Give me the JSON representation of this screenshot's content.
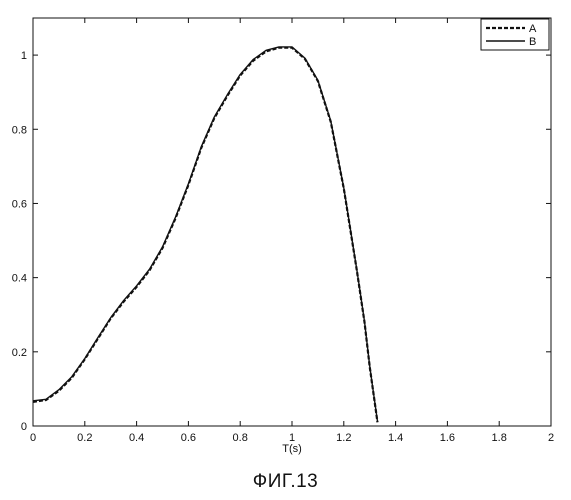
{
  "figure": {
    "caption": "ФИГ.13"
  },
  "chart_data": {
    "type": "line",
    "title": "",
    "xlabel": "T(s)",
    "ylabel": "",
    "xlim": [
      0,
      2
    ],
    "ylim": [
      0,
      1.1
    ],
    "xticks": [
      0,
      0.2,
      0.4,
      0.6,
      0.8,
      1,
      1.2,
      1.4,
      1.6,
      1.8,
      2
    ],
    "yticks": [
      0,
      0.2,
      0.4,
      0.6,
      0.8,
      1
    ],
    "xtick_labels": [
      "0",
      "0.2",
      "0.4",
      "0.6",
      "0.8",
      "1",
      "1.2",
      "1.4",
      "1.6",
      "1.8",
      "2"
    ],
    "ytick_labels": [
      "0",
      "0.2",
      "0.4",
      "0.6",
      "0.8",
      "1"
    ],
    "grid": false,
    "legend": "top-right",
    "series": [
      {
        "name": "A",
        "style": "dashed",
        "color": "#111111",
        "x": [
          0,
          0.05,
          0.1,
          0.15,
          0.2,
          0.25,
          0.3,
          0.35,
          0.4,
          0.45,
          0.5,
          0.55,
          0.6,
          0.65,
          0.7,
          0.75,
          0.8,
          0.85,
          0.9,
          0.95,
          1.0,
          1.05,
          1.1,
          1.15,
          1.2,
          1.25,
          1.28,
          1.3,
          1.32,
          1.33
        ],
        "y": [
          0.065,
          0.07,
          0.095,
          0.13,
          0.18,
          0.235,
          0.29,
          0.335,
          0.375,
          0.42,
          0.48,
          0.56,
          0.65,
          0.75,
          0.83,
          0.89,
          0.945,
          0.985,
          1.01,
          1.02,
          1.02,
          0.99,
          0.93,
          0.82,
          0.64,
          0.42,
          0.28,
          0.16,
          0.06,
          0.01
        ]
      },
      {
        "name": "B",
        "style": "solid",
        "color": "#111111",
        "x": [
          0,
          0.05,
          0.1,
          0.15,
          0.2,
          0.25,
          0.3,
          0.35,
          0.4,
          0.45,
          0.5,
          0.55,
          0.6,
          0.65,
          0.7,
          0.75,
          0.8,
          0.85,
          0.9,
          0.95,
          1.0,
          1.05,
          1.1,
          1.15,
          1.2,
          1.25,
          1.28,
          1.3,
          1.32,
          1.33
        ],
        "y": [
          0.068,
          0.072,
          0.098,
          0.133,
          0.182,
          0.238,
          0.292,
          0.338,
          0.378,
          0.423,
          0.483,
          0.563,
          0.653,
          0.753,
          0.833,
          0.893,
          0.948,
          0.988,
          1.013,
          1.022,
          1.022,
          0.992,
          0.932,
          0.822,
          0.642,
          0.422,
          0.282,
          0.162,
          0.062,
          0.012
        ]
      }
    ]
  }
}
